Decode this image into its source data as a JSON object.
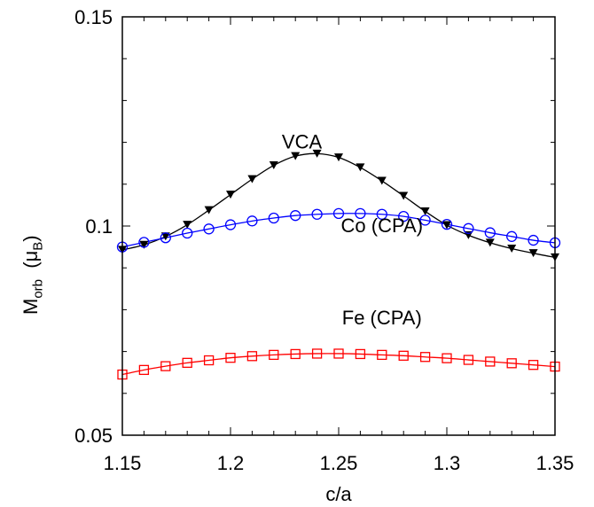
{
  "chart_data": {
    "type": "line",
    "xlabel": "c/a",
    "ylabel": {
      "main": "M",
      "sub": "orb",
      "unit_open": "  (μ",
      "unit_sub": "B",
      "unit_close": ")"
    },
    "xlim": [
      1.15,
      1.35
    ],
    "ylim": [
      0.05,
      0.15
    ],
    "xticks": [
      "1.15",
      "1.2",
      "1.25",
      "1.3",
      "1.35"
    ],
    "yticks": [
      "0.05",
      "0.1",
      "0.15"
    ],
    "x": [
      1.15,
      1.16,
      1.17,
      1.18,
      1.19,
      1.2,
      1.21,
      1.22,
      1.23,
      1.24,
      1.25,
      1.26,
      1.27,
      1.28,
      1.29,
      1.3,
      1.31,
      1.32,
      1.33,
      1.34,
      1.35
    ],
    "series": [
      {
        "name": "VCA",
        "color": "#000000",
        "marker": "triangle-down",
        "values": [
          0.0943,
          0.0955,
          0.0975,
          0.1003,
          0.1038,
          0.1075,
          0.1112,
          0.1145,
          0.1167,
          0.1173,
          0.1164,
          0.114,
          0.1108,
          0.1072,
          0.1035,
          0.1002,
          0.0978,
          0.096,
          0.0946,
          0.0935,
          0.0925
        ]
      },
      {
        "name": "Co (CPA)",
        "color": "#0000ff",
        "marker": "circle-open",
        "values": [
          0.095,
          0.0961,
          0.0972,
          0.0983,
          0.0993,
          0.1003,
          0.1012,
          0.1019,
          0.1025,
          0.1028,
          0.103,
          0.103,
          0.1028,
          0.1023,
          0.1014,
          0.1004,
          0.0994,
          0.0984,
          0.0975,
          0.0966,
          0.096
        ]
      },
      {
        "name": "Fe (CPA)",
        "color": "#ff0000",
        "marker": "square-open",
        "values": [
          0.0645,
          0.0656,
          0.0665,
          0.0673,
          0.0679,
          0.0685,
          0.0689,
          0.0692,
          0.0694,
          0.0695,
          0.0695,
          0.0694,
          0.0692,
          0.069,
          0.0687,
          0.0684,
          0.068,
          0.0676,
          0.0672,
          0.0668,
          0.0664
        ]
      }
    ],
    "annotations": [
      {
        "text": "VCA",
        "x": 1.233,
        "y": 0.1185
      },
      {
        "text": "Co (CPA)",
        "x": 1.27,
        "y": 0.0985
      },
      {
        "text": "Fe (CPA)",
        "x": 1.27,
        "y": 0.0765
      }
    ],
    "grid": false,
    "legend": "none"
  }
}
